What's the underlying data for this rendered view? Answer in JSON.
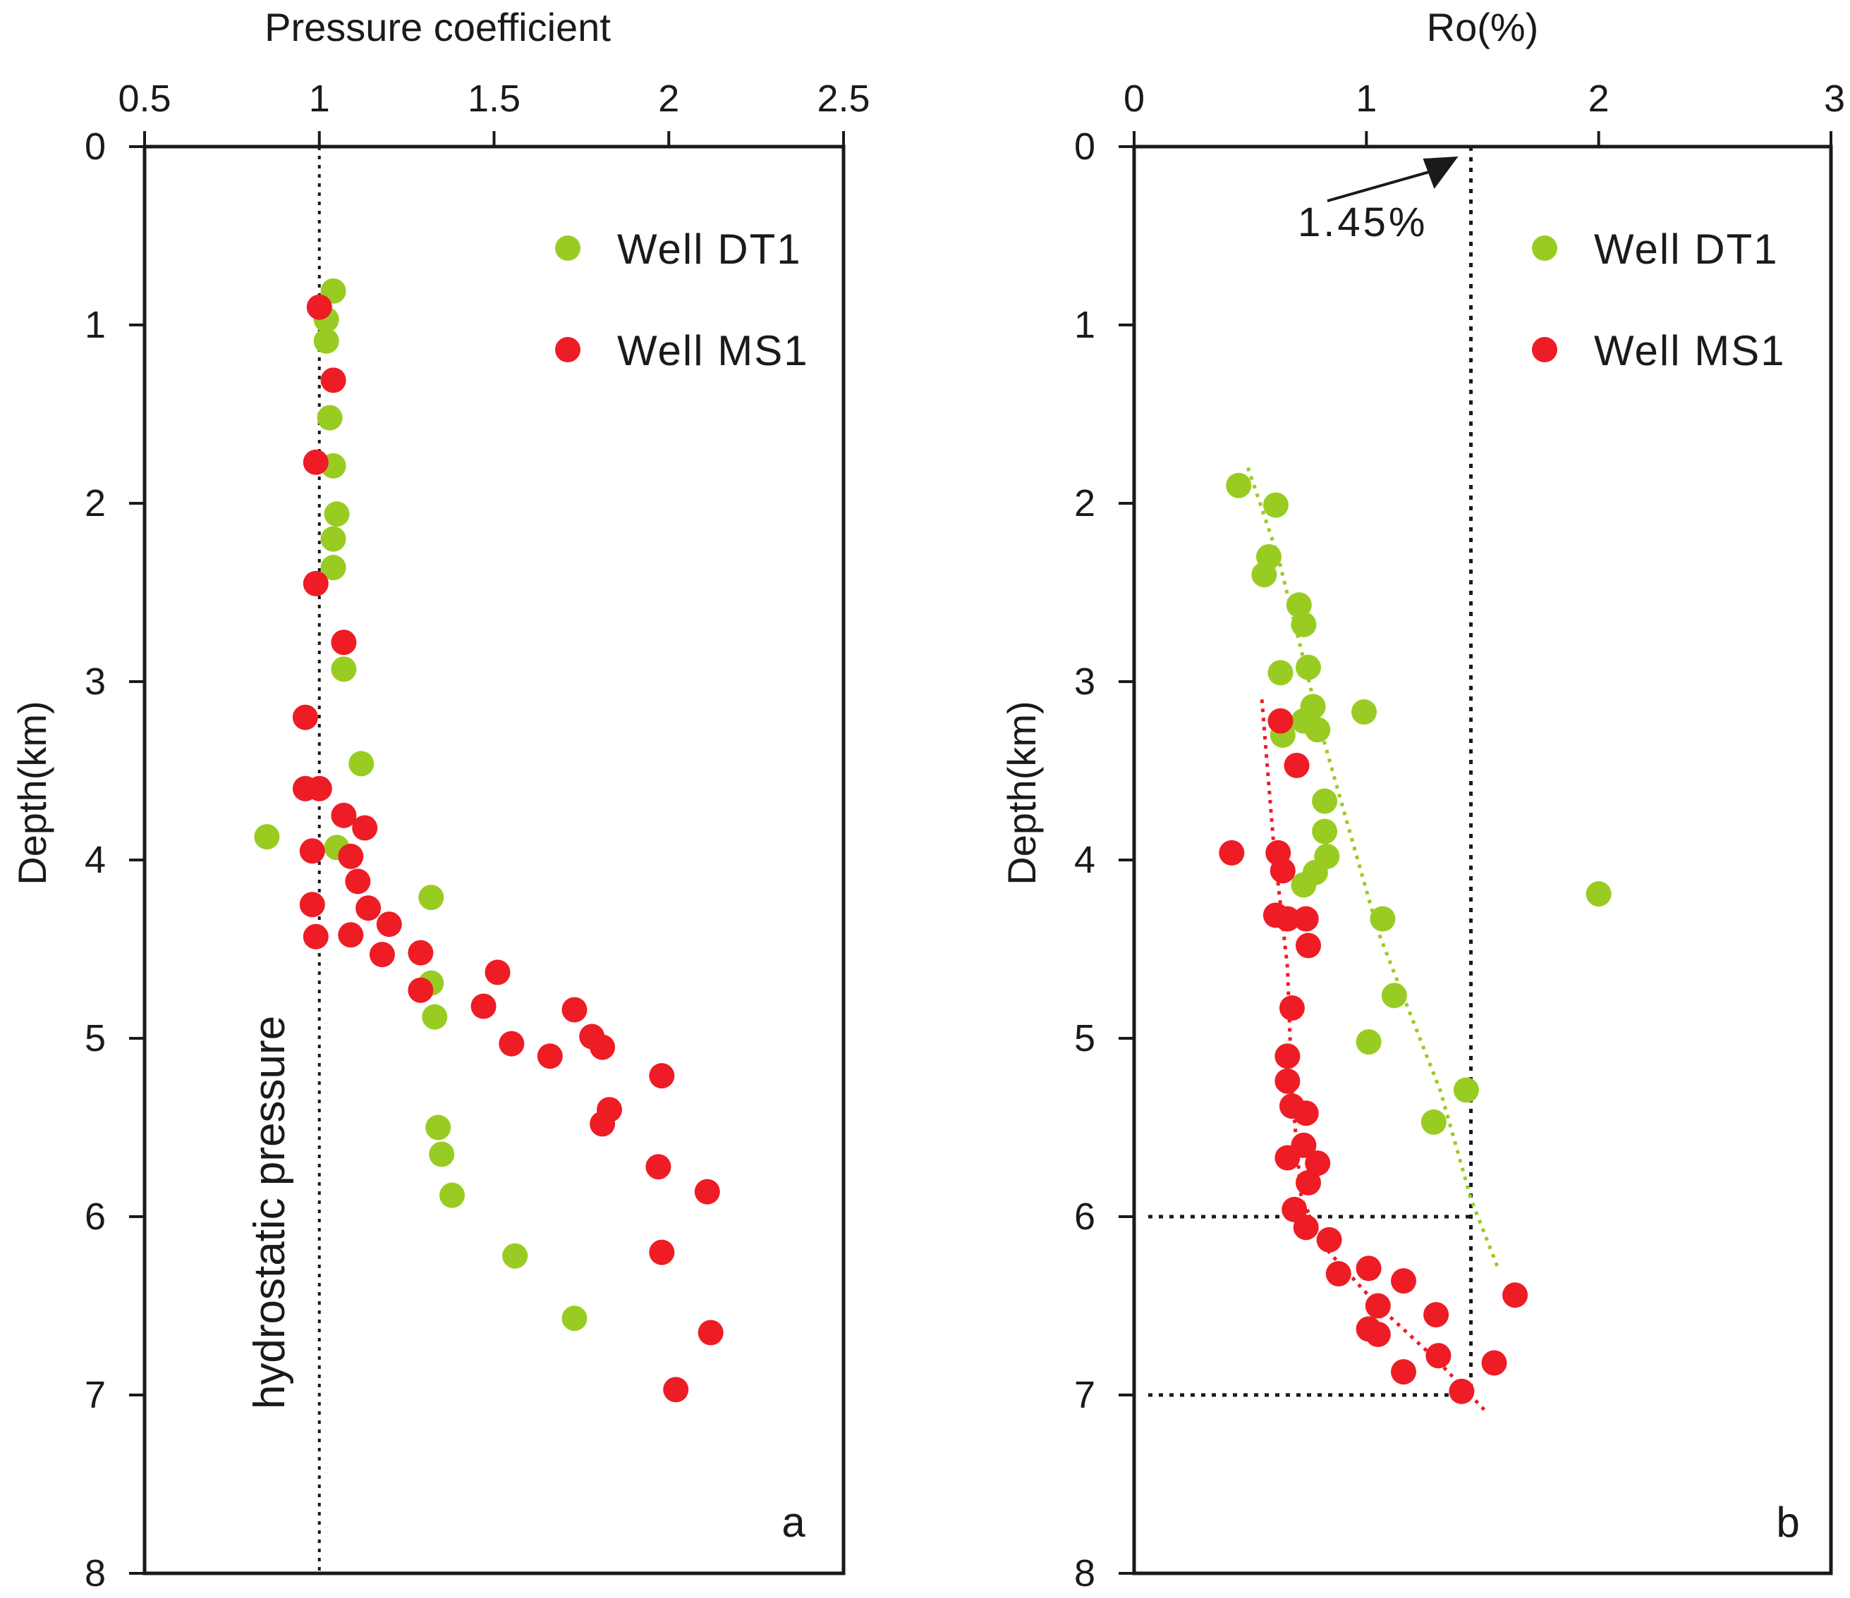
{
  "colors": {
    "dt1": "#99cc22",
    "ms1": "#ee1c24",
    "axis": "#1a1a1a"
  },
  "chart_data": [
    {
      "type": "scatter",
      "panel_label": "a",
      "xlabel": "Pressure coefficient",
      "ylabel": "Depth(km)",
      "xlim": [
        0.5,
        2.5
      ],
      "ylim": [
        0,
        8
      ],
      "x_axis_position": "top",
      "y_inverted": true,
      "xticks": [
        "0.5",
        "1",
        "1.5",
        "2",
        "2.5"
      ],
      "yticks": [
        "0",
        "1",
        "2",
        "3",
        "4",
        "5",
        "6",
        "7",
        "8"
      ],
      "legend_position": "top-right",
      "reference_line": {
        "x": 1.0,
        "label": "hydrostatic pressure",
        "style": "dotted"
      },
      "series": [
        {
          "name": "Well DT1",
          "color": "#99cc22",
          "points": [
            [
              1.04,
              0.81
            ],
            [
              1.02,
              0.97
            ],
            [
              1.02,
              1.09
            ],
            [
              1.03,
              1.52
            ],
            [
              1.04,
              1.79
            ],
            [
              1.05,
              2.06
            ],
            [
              1.04,
              2.2
            ],
            [
              1.04,
              2.36
            ],
            [
              1.07,
              2.93
            ],
            [
              1.12,
              3.46
            ],
            [
              0.85,
              3.87
            ],
            [
              1.05,
              3.93
            ],
            [
              1.32,
              4.21
            ],
            [
              1.32,
              4.69
            ],
            [
              1.33,
              4.88
            ],
            [
              1.34,
              5.5
            ],
            [
              1.35,
              5.65
            ],
            [
              1.38,
              5.88
            ],
            [
              1.56,
              6.22
            ],
            [
              1.73,
              6.57
            ]
          ]
        },
        {
          "name": "Well MS1",
          "color": "#ee1c24",
          "points": [
            [
              1.0,
              0.9
            ],
            [
              1.04,
              1.31
            ],
            [
              0.99,
              1.77
            ],
            [
              0.99,
              2.45
            ],
            [
              1.07,
              2.78
            ],
            [
              0.96,
              3.2
            ],
            [
              0.96,
              3.6
            ],
            [
              1.0,
              3.6
            ],
            [
              1.07,
              3.75
            ],
            [
              1.13,
              3.82
            ],
            [
              0.98,
              3.95
            ],
            [
              1.09,
              3.98
            ],
            [
              1.11,
              4.12
            ],
            [
              1.14,
              4.27
            ],
            [
              0.98,
              4.25
            ],
            [
              1.2,
              4.36
            ],
            [
              0.99,
              4.43
            ],
            [
              1.09,
              4.42
            ],
            [
              1.18,
              4.53
            ],
            [
              1.29,
              4.52
            ],
            [
              1.29,
              4.73
            ],
            [
              1.51,
              4.63
            ],
            [
              1.47,
              4.82
            ],
            [
              1.73,
              4.84
            ],
            [
              1.55,
              5.03
            ],
            [
              1.66,
              5.1
            ],
            [
              1.78,
              4.99
            ],
            [
              1.81,
              5.05
            ],
            [
              1.98,
              5.21
            ],
            [
              1.83,
              5.4
            ],
            [
              1.81,
              5.48
            ],
            [
              1.97,
              5.72
            ],
            [
              2.11,
              5.86
            ],
            [
              1.98,
              6.2
            ],
            [
              2.12,
              6.65
            ],
            [
              2.02,
              6.97
            ]
          ]
        }
      ]
    },
    {
      "type": "scatter",
      "panel_label": "b",
      "xlabel": "Ro(%)",
      "ylabel": "Depth(km)",
      "xlim": [
        0,
        3
      ],
      "ylim": [
        0,
        8
      ],
      "x_axis_position": "top",
      "y_inverted": true,
      "xticks": [
        "0",
        "1",
        "2",
        "3"
      ],
      "yticks": [
        "0",
        "1",
        "2",
        "3",
        "4",
        "5",
        "6",
        "7",
        "8"
      ],
      "legend_position": "top-right",
      "annotation": {
        "text": "1.45%",
        "x": 1.45
      },
      "reference_lines": [
        {
          "type": "vertical",
          "x": 1.45,
          "y_from": 0,
          "y_to": 7.0
        },
        {
          "type": "horizontal",
          "y": 6.0,
          "x_from": 0,
          "x_to": 1.45
        },
        {
          "type": "horizontal",
          "y": 7.0,
          "x_from": 0,
          "x_to": 1.45
        }
      ],
      "trend_lines": [
        {
          "series": "Well DT1",
          "color": "#99cc22",
          "points": [
            [
              0.49,
              1.8
            ],
            [
              0.62,
              2.3
            ],
            [
              0.81,
              3.3
            ],
            [
              1.05,
              4.4
            ],
            [
              1.32,
              5.3
            ],
            [
              1.45,
              5.9
            ],
            [
              1.57,
              6.3
            ]
          ]
        },
        {
          "series": "Well MS1",
          "color": "#ee1c24",
          "points": [
            [
              0.55,
              3.1
            ],
            [
              0.6,
              3.9
            ],
            [
              0.66,
              4.6
            ],
            [
              0.68,
              5.3
            ],
            [
              0.72,
              5.9
            ],
            [
              0.84,
              6.2
            ],
            [
              1.05,
              6.5
            ],
            [
              1.3,
              6.8
            ],
            [
              1.52,
              7.1
            ]
          ]
        }
      ],
      "series": [
        {
          "name": "Well DT1",
          "color": "#99cc22",
          "points": [
            [
              0.45,
              1.9
            ],
            [
              0.61,
              2.01
            ],
            [
              0.58,
              2.3
            ],
            [
              0.56,
              2.4
            ],
            [
              0.71,
              2.57
            ],
            [
              0.73,
              2.68
            ],
            [
              0.63,
              2.95
            ],
            [
              0.75,
              2.92
            ],
            [
              0.77,
              3.14
            ],
            [
              0.99,
              3.17
            ],
            [
              0.73,
              3.22
            ],
            [
              0.64,
              3.3
            ],
            [
              0.79,
              3.27
            ],
            [
              0.82,
              3.67
            ],
            [
              0.82,
              3.84
            ],
            [
              0.83,
              3.98
            ],
            [
              0.78,
              4.07
            ],
            [
              0.73,
              4.14
            ],
            [
              2.0,
              4.19
            ],
            [
              1.07,
              4.33
            ],
            [
              1.12,
              4.76
            ],
            [
              1.01,
              5.02
            ],
            [
              1.43,
              5.29
            ],
            [
              1.29,
              5.47
            ]
          ]
        },
        {
          "name": "Well MS1",
          "color": "#ee1c24",
          "points": [
            [
              0.63,
              3.22
            ],
            [
              0.7,
              3.47
            ],
            [
              0.42,
              3.96
            ],
            [
              0.62,
              3.96
            ],
            [
              0.64,
              4.06
            ],
            [
              0.61,
              4.31
            ],
            [
              0.66,
              4.33
            ],
            [
              0.74,
              4.33
            ],
            [
              0.75,
              4.48
            ],
            [
              0.68,
              4.83
            ],
            [
              0.66,
              5.1
            ],
            [
              0.66,
              5.24
            ],
            [
              0.68,
              5.38
            ],
            [
              0.74,
              5.42
            ],
            [
              0.73,
              5.6
            ],
            [
              0.66,
              5.67
            ],
            [
              0.79,
              5.7
            ],
            [
              0.75,
              5.81
            ],
            [
              0.69,
              5.96
            ],
            [
              0.74,
              6.06
            ],
            [
              0.84,
              6.13
            ],
            [
              0.88,
              6.32
            ],
            [
              1.01,
              6.29
            ],
            [
              1.16,
              6.36
            ],
            [
              1.05,
              6.5
            ],
            [
              1.01,
              6.63
            ],
            [
              1.05,
              6.66
            ],
            [
              1.3,
              6.55
            ],
            [
              1.64,
              6.44
            ],
            [
              1.31,
              6.78
            ],
            [
              1.16,
              6.87
            ],
            [
              1.55,
              6.82
            ],
            [
              1.41,
              6.98
            ]
          ]
        }
      ]
    }
  ]
}
